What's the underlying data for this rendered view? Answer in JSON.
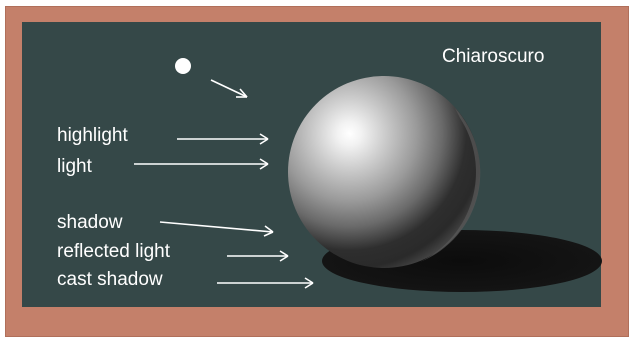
{
  "title": "Chiaroscuro",
  "labels": {
    "highlight": "highlight",
    "light": "light",
    "shadow": "shadow",
    "reflected_light": "reflected light",
    "cast_shadow": "cast shadow"
  },
  "colors": {
    "frame": "#c4806a",
    "board": "#354848",
    "text": "#ffffff",
    "cast_shadow": "#111111"
  }
}
